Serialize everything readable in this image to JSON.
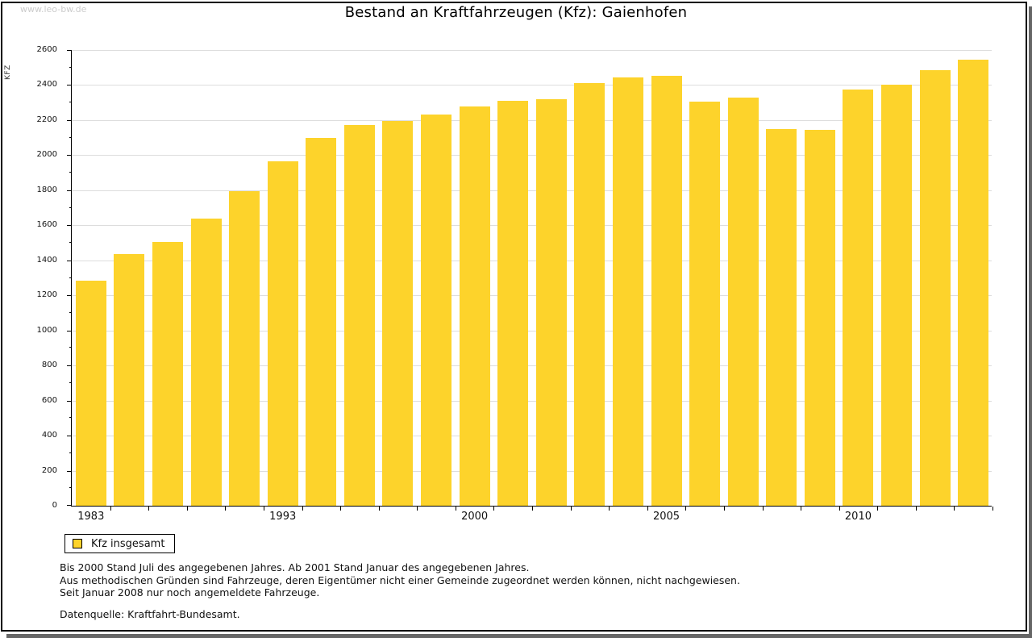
{
  "watermark": "www.leo-bw.de",
  "chart_data": {
    "type": "bar",
    "title": "Bestand an Kraftfahrzeugen (Kfz): Gaienhofen",
    "ylabel": "KFZ",
    "xlabel": "",
    "ylim": [
      0,
      2600
    ],
    "y_tick_step": 200,
    "y_minor_tick_step": 100,
    "grid": "horizontal",
    "bar_color": "#FDD32B",
    "values": [
      1285,
      1435,
      1505,
      1640,
      1795,
      1965,
      2100,
      2170,
      2195,
      2230,
      2280,
      2310,
      2320,
      2410,
      2445,
      2455,
      2305,
      2330,
      2150,
      2145,
      2375,
      2400,
      2485,
      2545
    ],
    "x_ticks": [
      {
        "bar_index": 0,
        "label": "1983"
      },
      {
        "bar_index": 5,
        "label": "1993"
      },
      {
        "bar_index": 10,
        "label": "2000"
      },
      {
        "bar_index": 15,
        "label": "2005"
      },
      {
        "bar_index": 20,
        "label": "2010"
      }
    ],
    "legend": [
      {
        "label": "Kfz insgesamt",
        "color": "#FDD32B"
      }
    ],
    "legend_position": "bottom-left"
  },
  "footnotes": [
    "Bis 2000 Stand Juli des angegebenen Jahres. Ab 2001 Stand Januar des angegebenen Jahres.",
    "Aus methodischen Gründen sind Fahrzeuge, deren Eigentümer nicht einer Gemeinde zugeordnet werden können, nicht nachgewiesen.",
    "Seit Januar 2008 nur noch angemeldete Fahrzeuge."
  ],
  "source": "Datenquelle: Kraftfahrt-Bundesamt.",
  "colors": {
    "bar": "#FDD32B",
    "gridline": "#DDDDDD",
    "axis": "#000000",
    "watermark": "#CCCCCC",
    "frame_shadow": "#666666",
    "background": "#FFFFFF"
  }
}
